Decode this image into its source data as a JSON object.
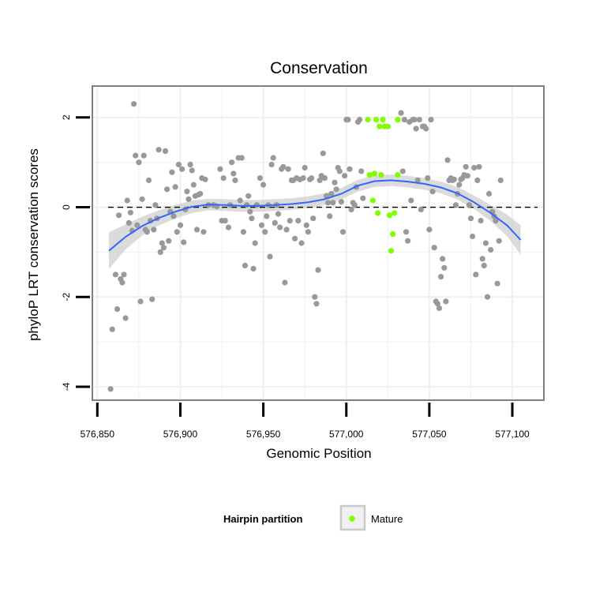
{
  "chart_data": {
    "type": "scatter",
    "title": "Conservation",
    "xlabel": "Genomic Position",
    "ylabel": "phyloP LRT conservation scores",
    "xlim": [
      576847,
      577119
    ],
    "ylim": [
      -4.3,
      2.7
    ],
    "x_ticks": [
      576850,
      576900,
      576950,
      577000,
      577050,
      577100
    ],
    "x_tick_labels": [
      "576,850",
      "576,900",
      "576,950",
      "577,000",
      "577,050",
      "577,100"
    ],
    "y_ticks": [
      2,
      0,
      -2,
      -4
    ],
    "y_tick_labels": [
      "2",
      "0",
      "-2",
      "-4"
    ],
    "reference_line_y": 0,
    "grid": true,
    "legend": {
      "title": "Hairpin partition",
      "position": "bottom",
      "entries": [
        {
          "label": "Mature",
          "color": "#7fff00"
        }
      ]
    },
    "colors": {
      "other_points": "#999999",
      "mature_points": "#7fff00",
      "smooth_line": "#3366ff",
      "ribbon": "#cccccc",
      "panel_border": "#7f7f7f",
      "grid": "#f0f0f0"
    },
    "smooth": [
      {
        "x": 576857,
        "y": -0.97,
        "lo": -1.38,
        "hi": -0.56
      },
      {
        "x": 576867,
        "y": -0.66,
        "lo": -0.94,
        "hi": -0.38
      },
      {
        "x": 576877,
        "y": -0.42,
        "lo": -0.63,
        "hi": -0.21
      },
      {
        "x": 576887,
        "y": -0.24,
        "lo": -0.41,
        "hi": -0.07
      },
      {
        "x": 576897,
        "y": -0.1,
        "lo": -0.25,
        "hi": 0.05
      },
      {
        "x": 576907,
        "y": 0.01,
        "lo": -0.13,
        "hi": 0.15
      },
      {
        "x": 576917,
        "y": 0.06,
        "lo": -0.07,
        "hi": 0.19
      },
      {
        "x": 576927,
        "y": 0.05,
        "lo": -0.08,
        "hi": 0.18
      },
      {
        "x": 576937,
        "y": 0.03,
        "lo": -0.1,
        "hi": 0.16
      },
      {
        "x": 576947,
        "y": 0.03,
        "lo": -0.1,
        "hi": 0.16
      },
      {
        "x": 576957,
        "y": 0.05,
        "lo": -0.08,
        "hi": 0.18
      },
      {
        "x": 576967,
        "y": 0.07,
        "lo": -0.06,
        "hi": 0.2
      },
      {
        "x": 576977,
        "y": 0.11,
        "lo": -0.02,
        "hi": 0.24
      },
      {
        "x": 576987,
        "y": 0.18,
        "lo": 0.05,
        "hi": 0.31
      },
      {
        "x": 576997,
        "y": 0.3,
        "lo": 0.17,
        "hi": 0.43
      },
      {
        "x": 577007,
        "y": 0.48,
        "lo": 0.35,
        "hi": 0.61
      },
      {
        "x": 577017,
        "y": 0.58,
        "lo": 0.45,
        "hi": 0.71
      },
      {
        "x": 577027,
        "y": 0.6,
        "lo": 0.47,
        "hi": 0.73
      },
      {
        "x": 577037,
        "y": 0.57,
        "lo": 0.44,
        "hi": 0.7
      },
      {
        "x": 577047,
        "y": 0.52,
        "lo": 0.39,
        "hi": 0.65
      },
      {
        "x": 577057,
        "y": 0.44,
        "lo": 0.31,
        "hi": 0.57
      },
      {
        "x": 577067,
        "y": 0.31,
        "lo": 0.17,
        "hi": 0.45
      },
      {
        "x": 577077,
        "y": 0.11,
        "lo": -0.04,
        "hi": 0.26
      },
      {
        "x": 577087,
        "y": -0.13,
        "lo": -0.31,
        "hi": 0.05
      },
      {
        "x": 577097,
        "y": -0.41,
        "lo": -0.65,
        "hi": -0.17
      },
      {
        "x": 577105,
        "y": -0.73,
        "lo": -1.06,
        "hi": -0.4
      }
    ],
    "series": [
      {
        "name": "Mature",
        "color": "#7fff00",
        "points": [
          [
            577013,
            1.95
          ],
          [
            577018,
            1.95
          ],
          [
            577022,
            1.95
          ],
          [
            577020,
            1.8
          ],
          [
            577023,
            1.8
          ],
          [
            577025,
            1.8
          ],
          [
            577031,
            1.95
          ],
          [
            577014,
            0.72
          ],
          [
            577017,
            0.75
          ],
          [
            577021,
            0.72
          ],
          [
            577031,
            0.72
          ],
          [
            577016,
            0.15
          ],
          [
            577019,
            -0.13
          ],
          [
            577026,
            -0.18
          ],
          [
            577029,
            -0.13
          ],
          [
            577028,
            -0.6
          ],
          [
            577027,
            -0.97
          ]
        ]
      },
      {
        "name": "",
        "color": "#999999",
        "points": [
          [
            576858,
            -4.05
          ],
          [
            576859,
            -2.72
          ],
          [
            576861,
            -1.5
          ],
          [
            576862,
            -2.27
          ],
          [
            576863,
            -0.18
          ],
          [
            576864,
            -1.6
          ],
          [
            576865,
            -1.68
          ],
          [
            576866,
            -1.5
          ],
          [
            576867,
            -2.47
          ],
          [
            576868,
            0.15
          ],
          [
            576869,
            -0.35
          ],
          [
            576870,
            -0.12
          ],
          [
            576871,
            -0.52
          ],
          [
            576872,
            2.3
          ],
          [
            576873,
            1.15
          ],
          [
            576874,
            -0.4
          ],
          [
            576875,
            1.0
          ],
          [
            576876,
            -2.1
          ],
          [
            576877,
            0.18
          ],
          [
            576878,
            1.15
          ],
          [
            576879,
            -0.5
          ],
          [
            576880,
            -0.55
          ],
          [
            576881,
            0.6
          ],
          [
            576882,
            -0.3
          ],
          [
            576883,
            -2.05
          ],
          [
            576884,
            -0.5
          ],
          [
            576885,
            0.05
          ],
          [
            576886,
            -0.25
          ],
          [
            576887,
            1.28
          ],
          [
            576888,
            -1.0
          ],
          [
            576889,
            -0.8
          ],
          [
            576890,
            -0.9
          ],
          [
            576891,
            1.25
          ],
          [
            576892,
            0.4
          ],
          [
            576893,
            -0.75
          ],
          [
            576894,
            -0.1
          ],
          [
            576895,
            0.78
          ],
          [
            576896,
            -0.2
          ],
          [
            576897,
            0.45
          ],
          [
            576898,
            -0.55
          ],
          [
            576899,
            0.95
          ],
          [
            576900,
            -0.4
          ],
          [
            576901,
            0.85
          ],
          [
            576902,
            -0.78
          ],
          [
            576903,
            -0.05
          ],
          [
            576904,
            0.35
          ],
          [
            576905,
            0.18
          ],
          [
            576906,
            0.95
          ],
          [
            576907,
            0.82
          ],
          [
            576908,
            0.5
          ],
          [
            576909,
            0.25
          ],
          [
            576910,
            -0.5
          ],
          [
            576911,
            0.28
          ],
          [
            576912,
            0.3
          ],
          [
            576913,
            0.65
          ],
          [
            576914,
            -0.55
          ],
          [
            576915,
            0.62
          ],
          [
            576917,
            0.05
          ],
          [
            576920,
            0.05
          ],
          [
            576922,
            0.02
          ],
          [
            576924,
            0.85
          ],
          [
            576925,
            -0.3
          ],
          [
            576926,
            0.65
          ],
          [
            576927,
            -0.3
          ],
          [
            576929,
            -0.45
          ],
          [
            576930,
            0.05
          ],
          [
            576931,
            1.0
          ],
          [
            576932,
            0.75
          ],
          [
            576933,
            0.6
          ],
          [
            576935,
            1.1
          ],
          [
            576936,
            0.15
          ],
          [
            576937,
            1.1
          ],
          [
            576938,
            -0.55
          ],
          [
            576939,
            -1.3
          ],
          [
            576940,
            0.05
          ],
          [
            576941,
            0.25
          ],
          [
            576942,
            -0.1
          ],
          [
            576943,
            -0.25
          ],
          [
            576944,
            -1.37
          ],
          [
            576945,
            -0.8
          ],
          [
            576946,
            0.05
          ],
          [
            576948,
            0.65
          ],
          [
            576949,
            -0.4
          ],
          [
            576950,
            0.5
          ],
          [
            576951,
            -0.55
          ],
          [
            576952,
            -0.2
          ],
          [
            576953,
            0.05
          ],
          [
            576954,
            -1.1
          ],
          [
            576955,
            0.95
          ],
          [
            576956,
            1.1
          ],
          [
            576957,
            -0.35
          ],
          [
            576958,
            0.05
          ],
          [
            576959,
            -0.15
          ],
          [
            576960,
            -0.45
          ],
          [
            576961,
            0.85
          ],
          [
            576962,
            0.9
          ],
          [
            576963,
            -1.68
          ],
          [
            576964,
            -0.5
          ],
          [
            576965,
            0.85
          ],
          [
            576966,
            -0.3
          ],
          [
            576967,
            0.6
          ],
          [
            576968,
            0.6
          ],
          [
            576969,
            -0.7
          ],
          [
            576970,
            0.65
          ],
          [
            576971,
            -0.3
          ],
          [
            576972,
            0.62
          ],
          [
            576973,
            -0.8
          ],
          [
            576974,
            0.65
          ],
          [
            576975,
            0.88
          ],
          [
            576976,
            -0.4
          ],
          [
            576977,
            -0.55
          ],
          [
            576978,
            0.62
          ],
          [
            576979,
            0.65
          ],
          [
            576980,
            -0.25
          ],
          [
            576981,
            -2.0
          ],
          [
            576982,
            -2.15
          ],
          [
            576983,
            -1.4
          ],
          [
            576984,
            0.6
          ],
          [
            576985,
            0.7
          ],
          [
            576986,
            1.2
          ],
          [
            576987,
            0.65
          ],
          [
            576988,
            0.25
          ],
          [
            576989,
            0.1
          ],
          [
            576990,
            -0.2
          ],
          [
            576991,
            0.3
          ],
          [
            576992,
            0.1
          ],
          [
            576993,
            0.55
          ],
          [
            576994,
            0.4
          ],
          [
            576995,
            0.88
          ],
          [
            576996,
            0.8
          ],
          [
            576997,
            0.12
          ],
          [
            576998,
            -0.55
          ],
          [
            576999,
            0.7
          ],
          [
            577000,
            1.95
          ],
          [
            577001,
            1.95
          ],
          [
            577002,
            0.85
          ],
          [
            577003,
            -0.05
          ],
          [
            577004,
            0.1
          ],
          [
            577005,
            0.05
          ],
          [
            577006,
            0.45
          ],
          [
            577007,
            1.9
          ],
          [
            577008,
            1.95
          ],
          [
            577009,
            0.8
          ],
          [
            577010,
            0.2
          ],
          [
            577033,
            2.1
          ],
          [
            577034,
            0.8
          ],
          [
            577035,
            1.95
          ],
          [
            577036,
            -0.55
          ],
          [
            577037,
            -0.75
          ],
          [
            577038,
            1.9
          ],
          [
            577039,
            0.15
          ],
          [
            577040,
            1.95
          ],
          [
            577041,
            1.95
          ],
          [
            577042,
            1.75
          ],
          [
            577043,
            0.6
          ],
          [
            577044,
            1.95
          ],
          [
            577045,
            -0.05
          ],
          [
            577046,
            1.8
          ],
          [
            577047,
            1.8
          ],
          [
            577048,
            1.75
          ],
          [
            577049,
            0.65
          ],
          [
            577050,
            -0.5
          ],
          [
            577051,
            1.95
          ],
          [
            577052,
            0.35
          ],
          [
            577053,
            -0.9
          ],
          [
            577054,
            -2.1
          ],
          [
            577055,
            -2.15
          ],
          [
            577056,
            -2.25
          ],
          [
            577057,
            -1.55
          ],
          [
            577058,
            -1.15
          ],
          [
            577059,
            -1.35
          ],
          [
            577060,
            -2.1
          ],
          [
            577061,
            1.05
          ],
          [
            577062,
            0.6
          ],
          [
            577063,
            0.65
          ],
          [
            577064,
            0.6
          ],
          [
            577065,
            0.62
          ],
          [
            577066,
            0.05
          ],
          [
            577067,
            0.3
          ],
          [
            577068,
            0.5
          ],
          [
            577069,
            0.62
          ],
          [
            577070,
            0.65
          ],
          [
            577071,
            0.72
          ],
          [
            577072,
            0.9
          ],
          [
            577073,
            0.7
          ],
          [
            577074,
            0.05
          ],
          [
            577075,
            -0.25
          ],
          [
            577076,
            -0.65
          ],
          [
            577077,
            0.88
          ],
          [
            577078,
            -1.5
          ],
          [
            577079,
            0.6
          ],
          [
            577080,
            0.9
          ],
          [
            577081,
            -0.3
          ],
          [
            577082,
            -1.15
          ],
          [
            577083,
            -1.3
          ],
          [
            577084,
            -0.8
          ],
          [
            577085,
            -2.0
          ],
          [
            577086,
            0.3
          ],
          [
            577087,
            -0.95
          ],
          [
            577088,
            -0.1
          ],
          [
            577089,
            -0.2
          ],
          [
            577090,
            -0.3
          ],
          [
            577091,
            -1.7
          ],
          [
            577092,
            -0.75
          ],
          [
            577093,
            0.6
          ]
        ]
      }
    ]
  }
}
